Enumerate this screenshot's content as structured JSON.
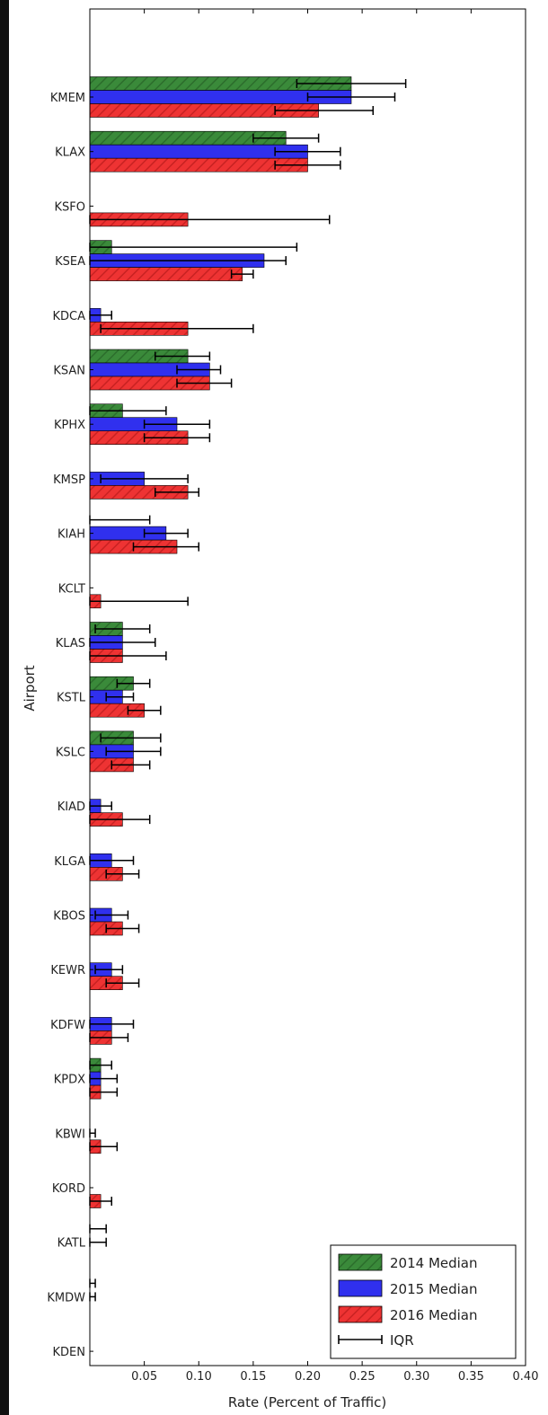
{
  "chart_data": {
    "type": "bar",
    "orientation": "horizontal",
    "title": "",
    "xlabel": "Rate (Percent of Traffic)",
    "ylabel": "Airport",
    "xlim": [
      0,
      0.4
    ],
    "xticks": [
      0.05,
      0.1,
      0.15,
      0.2,
      0.25,
      0.3,
      0.35,
      0.4
    ],
    "xtick_labels": [
      "0.05",
      "0.10",
      "0.15",
      "0.20",
      "0.25",
      "0.30",
      "0.35",
      "0.40"
    ],
    "grid": false,
    "legend_position": "bottom-right",
    "legend": [
      "2014 Median",
      "2015 Median",
      "2016 Median",
      "IQR"
    ],
    "categories": [
      "KMEM",
      "KLAX",
      "KSFO",
      "KSEA",
      "KDCA",
      "KSAN",
      "KPHX",
      "KMSP",
      "KIAH",
      "KCLT",
      "KLAS",
      "KSTL",
      "KSLC",
      "KIAD",
      "KLGA",
      "KBOS",
      "KEWR",
      "KDFW",
      "KPDX",
      "KBWI",
      "KORD",
      "KATL",
      "KMDW",
      "KDEN"
    ],
    "series": [
      {
        "name": "2014 Median",
        "color": "#3a8a3a",
        "hatch": "diagonal",
        "values": [
          0.24,
          0.18,
          0,
          0.02,
          0,
          0.09,
          0.03,
          0,
          0,
          0,
          0.03,
          0.04,
          0.04,
          0,
          0,
          0,
          0,
          0,
          0.01,
          0,
          0,
          0,
          0,
          0
        ],
        "iqr": [
          [
            0.19,
            0.29
          ],
          [
            0.15,
            0.21
          ],
          null,
          [
            0.0,
            0.19
          ],
          null,
          [
            0.06,
            0.11
          ],
          [
            0.0,
            0.07
          ],
          null,
          [
            0.0,
            0.055
          ],
          null,
          [
            0.005,
            0.055
          ],
          [
            0.025,
            0.055
          ],
          [
            0.01,
            0.065
          ],
          null,
          null,
          null,
          null,
          null,
          [
            0.0,
            0.02
          ],
          null,
          null,
          [
            0.0,
            0.015
          ],
          [
            0.0,
            0.005
          ],
          null
        ]
      },
      {
        "name": "2015 Median",
        "color": "#3030ee",
        "hatch": "none",
        "values": [
          0.24,
          0.2,
          0,
          0.16,
          0.01,
          0.11,
          0.08,
          0.05,
          0.07,
          0,
          0.03,
          0.03,
          0.04,
          0.01,
          0.02,
          0.02,
          0.02,
          0.02,
          0.01,
          0,
          0,
          0,
          0,
          0
        ],
        "iqr": [
          [
            0.2,
            0.28
          ],
          [
            0.17,
            0.23
          ],
          null,
          [
            0.0,
            0.18
          ],
          [
            0.0,
            0.02
          ],
          [
            0.08,
            0.12
          ],
          [
            0.05,
            0.11
          ],
          [
            0.01,
            0.09
          ],
          [
            0.05,
            0.09
          ],
          null,
          [
            0.0,
            0.06
          ],
          [
            0.015,
            0.04
          ],
          [
            0.015,
            0.065
          ],
          [
            0.0,
            0.02
          ],
          [
            0.0,
            0.04
          ],
          [
            0.005,
            0.035
          ],
          [
            0.005,
            0.03
          ],
          [
            0.0,
            0.04
          ],
          [
            0.0,
            0.025
          ],
          [
            0.0,
            0.005
          ],
          null,
          [
            0.0,
            0.015
          ],
          [
            0.0,
            0.005
          ],
          null
        ]
      },
      {
        "name": "2016 Median",
        "color": "#ee3333",
        "hatch": "diagonal",
        "values": [
          0.21,
          0.2,
          0.09,
          0.14,
          0.09,
          0.11,
          0.09,
          0.09,
          0.08,
          0.01,
          0.03,
          0.05,
          0.04,
          0.03,
          0.03,
          0.03,
          0.03,
          0.02,
          0.01,
          0.01,
          0.01,
          0,
          0,
          0
        ],
        "iqr": [
          [
            0.17,
            0.26
          ],
          [
            0.17,
            0.23
          ],
          [
            0.0,
            0.22
          ],
          [
            0.13,
            0.15
          ],
          [
            0.01,
            0.15
          ],
          [
            0.08,
            0.13
          ],
          [
            0.05,
            0.11
          ],
          [
            0.06,
            0.1
          ],
          [
            0.04,
            0.1
          ],
          [
            0.0,
            0.09
          ],
          [
            0.0,
            0.07
          ],
          [
            0.035,
            0.065
          ],
          [
            0.02,
            0.055
          ],
          [
            0.0,
            0.055
          ],
          [
            0.015,
            0.045
          ],
          [
            0.015,
            0.045
          ],
          [
            0.015,
            0.045
          ],
          [
            0.0,
            0.035
          ],
          [
            0.0,
            0.025
          ],
          [
            0.0,
            0.025
          ],
          [
            0.0,
            0.02
          ],
          null,
          null,
          null
        ]
      }
    ]
  }
}
